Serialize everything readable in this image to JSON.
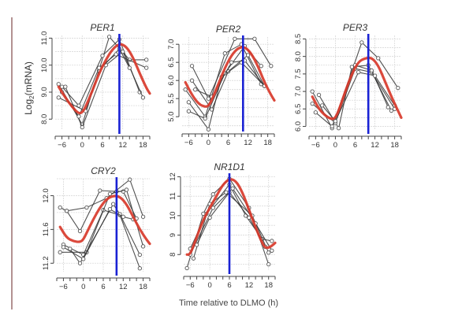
{
  "figure": {
    "ylabel_main": "Log",
    "ylabel_sub": "2",
    "ylabel_rest": "(mRNA)",
    "xlabel": "Time relative to DLMO (h)"
  },
  "colors": {
    "fit": "#d8392b",
    "marker": "#1a22d4",
    "individual": "#333333",
    "grid": "#d9d9d9",
    "axis": "#444444",
    "left_rule": "#9a6f6f"
  },
  "chart_data": [
    {
      "type": "line",
      "title": "PER1",
      "xlabel": "Time relative to DLMO (h)",
      "ylabel": "Log2(mRNA)",
      "xlim": [
        -8,
        20
      ],
      "ylim": [
        7.6,
        11.1
      ],
      "xticks": [
        -6,
        0,
        6,
        12,
        18
      ],
      "yticks": [
        8.0,
        9.0,
        10.0,
        11.0
      ],
      "ytick_labels": [
        "8.0",
        "9.0",
        "10.0",
        "11.0"
      ],
      "grid": true,
      "peak_marker_x": 11,
      "fit": {
        "x": [
          -7,
          -5,
          -3,
          -1,
          0,
          1,
          3,
          5,
          7,
          9,
          11,
          13,
          15,
          17,
          19,
          20
        ],
        "y": [
          9.2,
          8.8,
          8.45,
          8.2,
          8.25,
          8.45,
          9.05,
          9.7,
          10.2,
          10.6,
          10.8,
          10.7,
          10.3,
          9.7,
          9.15,
          8.95
        ]
      },
      "individuals": [
        {
          "x": [
            -7,
            0,
            8,
            14,
            19
          ],
          "y": [
            9.3,
            7.8,
            11.05,
            10.2,
            10.2
          ]
        },
        {
          "x": [
            -6,
            -1,
            6,
            11,
            17
          ],
          "y": [
            9.2,
            8.5,
            10.35,
            10.95,
            9.0
          ]
        },
        {
          "x": [
            -5,
            0,
            7,
            12,
            18
          ],
          "y": [
            9.2,
            7.7,
            10.0,
            10.5,
            8.8
          ]
        },
        {
          "x": [
            -7,
            1,
            5,
            11,
            14
          ],
          "y": [
            8.8,
            8.3,
            9.8,
            10.6,
            9.9
          ]
        },
        {
          "x": [
            -6,
            -1,
            5,
            10,
            19
          ],
          "y": [
            9.0,
            8.1,
            9.9,
            10.4,
            9.9
          ]
        }
      ]
    },
    {
      "type": "line",
      "title": "PER2",
      "xlabel": "Time relative to DLMO (h)",
      "ylabel": "Log2(mRNA)",
      "xlim": [
        -8,
        20
      ],
      "ylim": [
        4.7,
        7.2
      ],
      "xticks": [
        -6,
        0,
        6,
        12,
        18
      ],
      "yticks": [
        5.0,
        5.5,
        6.0,
        6.5,
        7.0
      ],
      "ytick_labels": [
        "5.0",
        "5.5",
        "6.0",
        "6.5",
        "7.0"
      ],
      "grid": true,
      "peak_marker_x": 10.5,
      "fit": {
        "x": [
          -7,
          -5,
          -3,
          -1,
          0,
          1,
          3,
          5,
          7,
          9,
          11,
          13,
          15,
          17,
          19,
          20
        ],
        "y": [
          5.95,
          5.6,
          5.35,
          5.27,
          5.3,
          5.45,
          5.9,
          6.35,
          6.7,
          6.9,
          6.93,
          6.75,
          6.4,
          5.95,
          5.6,
          5.45
        ]
      },
      "individuals": [
        {
          "x": [
            -5,
            0,
            8,
            14,
            19
          ],
          "y": [
            6.4,
            5.5,
            7.15,
            7.15,
            6.4
          ]
        },
        {
          "x": [
            -7,
            -1,
            5,
            10,
            16
          ],
          "y": [
            5.75,
            5.0,
            6.75,
            7.0,
            5.9
          ]
        },
        {
          "x": [
            -5,
            1,
            6,
            12,
            17
          ],
          "y": [
            6.0,
            5.2,
            6.25,
            6.7,
            5.85
          ]
        },
        {
          "x": [
            -6,
            0,
            4,
            10,
            17
          ],
          "y": [
            5.4,
            4.65,
            6.1,
            6.5,
            5.85
          ]
        },
        {
          "x": [
            -6,
            -1,
            5,
            11,
            16
          ],
          "y": [
            5.15,
            4.95,
            6.2,
            6.95,
            6.4
          ]
        },
        {
          "x": [
            -4,
            1,
            7,
            11,
            17
          ],
          "y": [
            5.75,
            5.55,
            6.5,
            6.55,
            5.85
          ]
        }
      ]
    },
    {
      "type": "line",
      "title": "PER3",
      "xlabel": "Time relative to DLMO (h)",
      "ylabel": "Log2(mRNA)",
      "xlim": [
        -8,
        20
      ],
      "ylim": [
        5.9,
        8.6
      ],
      "xticks": [
        -6,
        0,
        6,
        12,
        18
      ],
      "yticks": [
        6.0,
        6.5,
        7.0,
        7.5,
        8.0,
        8.5
      ],
      "ytick_labels": [
        "6.0",
        "6.5",
        "7.0",
        "7.5",
        "8.0",
        "8.5"
      ],
      "grid": true,
      "peak_marker_x": 10,
      "fit": {
        "x": [
          -7,
          -5,
          -3,
          -1,
          0,
          1,
          3,
          5,
          7,
          9,
          11,
          13,
          15,
          17,
          19,
          20
        ],
        "y": [
          6.85,
          6.5,
          6.3,
          6.2,
          6.25,
          6.45,
          7.0,
          7.5,
          7.85,
          7.95,
          7.97,
          7.75,
          7.3,
          6.85,
          6.45,
          6.25
        ]
      },
      "individuals": [
        {
          "x": [
            -7,
            -1,
            8,
            13,
            19
          ],
          "y": [
            7.0,
            5.95,
            8.4,
            7.95,
            7.1
          ]
        },
        {
          "x": [
            -5,
            1,
            5,
            10,
            17
          ],
          "y": [
            6.9,
            5.95,
            7.7,
            7.75,
            6.45
          ]
        },
        {
          "x": [
            -7,
            0,
            6,
            11,
            18
          ],
          "y": [
            6.65,
            6.1,
            7.65,
            7.55,
            6.5
          ]
        },
        {
          "x": [
            -6,
            -1,
            6,
            11,
            16
          ],
          "y": [
            6.4,
            6.0,
            7.75,
            7.6,
            6.55
          ]
        },
        {
          "x": [
            -4,
            0,
            7,
            12,
            18
          ],
          "y": [
            6.6,
            6.15,
            7.55,
            7.45,
            6.6
          ]
        }
      ]
    },
    {
      "type": "line",
      "title": "CRY2",
      "xlabel": "Time relative to DLMO (h)",
      "ylabel": "Log2(mRNA)",
      "xlim": [
        -8,
        20
      ],
      "ylim": [
        11.1,
        12.2
      ],
      "xticks": [
        -6,
        0,
        6,
        12,
        18
      ],
      "yticks": [
        11.2,
        11.6,
        12.0
      ],
      "ytick_labels": [
        "11.2",
        "11.6",
        "12.0"
      ],
      "grid": true,
      "peak_marker_x": 10,
      "fit": {
        "x": [
          -7,
          -5,
          -3,
          -1,
          0,
          1,
          3,
          5,
          7,
          9,
          11,
          13,
          15,
          17,
          19,
          20
        ],
        "y": [
          11.63,
          11.5,
          11.46,
          11.45,
          11.48,
          11.56,
          11.72,
          11.86,
          11.96,
          12.0,
          11.99,
          11.9,
          11.75,
          11.6,
          11.48,
          11.43
        ]
      },
      "individuals": [
        {
          "x": [
            -7,
            -5,
            1,
            7,
            14,
            18
          ],
          "y": [
            11.86,
            11.82,
            11.86,
            11.97,
            12.19,
            11.75
          ]
        },
        {
          "x": [
            -5,
            -1,
            5,
            10,
            12,
            16
          ],
          "y": [
            11.82,
            11.58,
            12.06,
            12.05,
            12.05,
            11.73
          ]
        },
        {
          "x": [
            -6,
            0,
            6,
            11,
            17
          ],
          "y": [
            11.42,
            11.3,
            11.83,
            11.77,
            11.14
          ]
        },
        {
          "x": [
            -7,
            1,
            8,
            13,
            18
          ],
          "y": [
            11.33,
            11.33,
            12.02,
            12.07,
            11.4
          ]
        },
        {
          "x": [
            -4,
            -1,
            9,
            11,
            17
          ],
          "y": [
            11.37,
            11.2,
            11.9,
            11.78,
            11.3
          ]
        },
        {
          "x": [
            -6,
            0,
            8,
            12,
            15
          ],
          "y": [
            11.39,
            11.25,
            11.84,
            11.75,
            11.72
          ]
        }
      ]
    },
    {
      "type": "line",
      "title": "NR1D1",
      "xlabel": "Time relative to DLMO (h)",
      "ylabel": "Log2(mRNA)",
      "xlim": [
        -8,
        20
      ],
      "ylim": [
        7.2,
        12.1
      ],
      "xticks": [
        -6,
        0,
        6,
        12,
        18
      ],
      "yticks": [
        8,
        9,
        10,
        11,
        12
      ],
      "ytick_labels": [
        "8",
        "9",
        "10",
        "11",
        "12"
      ],
      "grid": true,
      "peak_marker_x": 6,
      "fit": {
        "x": [
          -7,
          -6,
          -4,
          -2,
          0,
          2,
          4,
          6,
          8,
          10,
          12,
          14,
          16,
          17,
          18,
          19,
          20
        ],
        "y": [
          8.0,
          8.0,
          8.9,
          9.8,
          10.4,
          11.0,
          11.6,
          11.9,
          11.8,
          11.2,
          10.3,
          9.4,
          8.6,
          8.35,
          8.35,
          8.45,
          8.6
        ]
      },
      "individuals": [
        {
          "x": [
            -7,
            -2,
            1,
            6,
            12,
            18
          ],
          "y": [
            7.3,
            10.1,
            11.1,
            11.9,
            10.4,
            7.5
          ]
        },
        {
          "x": [
            -6,
            -1,
            6,
            11,
            16,
            19
          ],
          "y": [
            8.3,
            10.1,
            11.6,
            10.0,
            8.8,
            8.7
          ]
        },
        {
          "x": [
            -5,
            0,
            5,
            13,
            18
          ],
          "y": [
            7.8,
            10.6,
            11.2,
            10.0,
            8.1
          ]
        },
        {
          "x": [
            -6,
            1,
            7,
            14,
            19
          ],
          "y": [
            8.0,
            10.4,
            11.4,
            9.6,
            8.2
          ]
        },
        {
          "x": [
            -4,
            0,
            6,
            12,
            17
          ],
          "y": [
            8.5,
            9.9,
            11.2,
            9.9,
            8.4
          ]
        }
      ]
    }
  ]
}
